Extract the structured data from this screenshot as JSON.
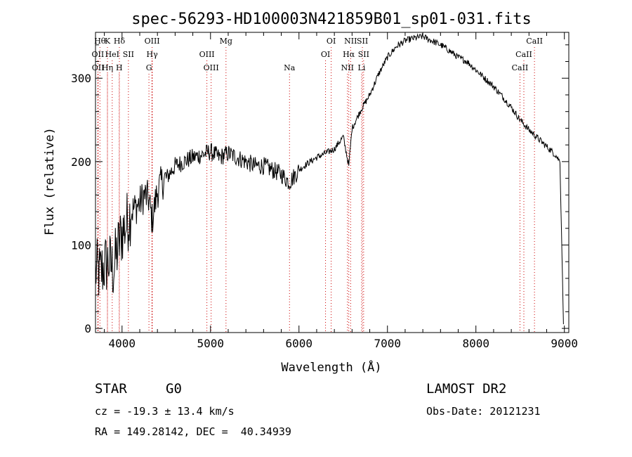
{
  "chart_data": {
    "type": "line",
    "title": "spec-56293-HD100003N421859B01_sp01-031.fits",
    "xlabel": "Wavelength (Å)",
    "ylabel": "Flux (relative)",
    "xlim": [
      3700,
      9050
    ],
    "ylim": [
      -5,
      355
    ],
    "xticks": [
      4000,
      5000,
      6000,
      7000,
      8000,
      9000
    ],
    "yticks": [
      0,
      100,
      200,
      300
    ],
    "grid": false,
    "series": [
      {
        "color": "#000000",
        "x": [
          3700,
          3750,
          3800,
          3850,
          3900,
          3950,
          4000,
          4050,
          4100,
          4150,
          4200,
          4250,
          4300,
          4340,
          4400,
          4450,
          4500,
          4600,
          4700,
          4800,
          4900,
          5000,
          5100,
          5200,
          5300,
          5400,
          5500,
          5600,
          5700,
          5800,
          5890,
          6000,
          6100,
          6200,
          6300,
          6400,
          6500,
          6563,
          6600,
          6700,
          6800,
          6900,
          7000,
          7100,
          7200,
          7300,
          7400,
          7500,
          7600,
          7700,
          7800,
          7900,
          8000,
          8100,
          8200,
          8300,
          8400,
          8500,
          8600,
          8700,
          8800,
          8900,
          8950,
          8990
        ],
        "y": [
          70,
          65,
          75,
          80,
          70,
          95,
          115,
          125,
          140,
          145,
          150,
          160,
          155,
          130,
          165,
          175,
          180,
          195,
          200,
          205,
          208,
          212,
          205,
          210,
          205,
          200,
          195,
          195,
          190,
          185,
          175,
          190,
          198,
          205,
          210,
          215,
          230,
          195,
          240,
          262,
          280,
          305,
          325,
          338,
          345,
          348,
          350,
          345,
          340,
          333,
          325,
          320,
          310,
          300,
          290,
          278,
          265,
          250,
          238,
          228,
          218,
          208,
          200,
          5
        ]
      }
    ],
    "line_markers": [
      {
        "x": 3750,
        "label": "Hθ",
        "row": 0,
        "color": "#cc0000"
      },
      {
        "x": 3835,
        "label": "K",
        "row": 0,
        "color": "#cc0000"
      },
      {
        "x": 3970,
        "label": "Hδ",
        "row": 0,
        "color": "#cc0000"
      },
      {
        "x": 4340,
        "label": "OIII",
        "row": 0,
        "color": "#cc0000"
      },
      {
        "x": 5175,
        "label": "Mg",
        "row": 0,
        "color": "#cc0000"
      },
      {
        "x": 6364,
        "label": "OI",
        "row": 0,
        "color": "#cc0000"
      },
      {
        "x": 6584,
        "label": "NII",
        "row": 0,
        "color": "#cc0000"
      },
      {
        "x": 6717,
        "label": "SII",
        "row": 0,
        "color": "#cc0000"
      },
      {
        "x": 8662,
        "label": "CaII",
        "row": 0,
        "color": "#cc0000"
      },
      {
        "x": 3727,
        "label": "OII",
        "row": 1,
        "color": "#cc0000"
      },
      {
        "x": 3889,
        "label": "HeI",
        "row": 1,
        "color": "#cc0000"
      },
      {
        "x": 4072,
        "label": "SII",
        "row": 1,
        "color": "#cc0000"
      },
      {
        "x": 4340,
        "label": "Hγ",
        "row": 1,
        "color": "#cc0000"
      },
      {
        "x": 4959,
        "label": "OIII",
        "row": 1,
        "color": "#cc0000"
      },
      {
        "x": 6300,
        "label": "OI",
        "row": 1,
        "color": "#cc0000"
      },
      {
        "x": 6563,
        "label": "Hα",
        "row": 1,
        "color": "#cc0000"
      },
      {
        "x": 6731,
        "label": "SII",
        "row": 1,
        "color": "#cc0000"
      },
      {
        "x": 8542,
        "label": "CaII",
        "row": 1,
        "color": "#cc0000"
      },
      {
        "x": 3729,
        "label": "OII",
        "row": 2,
        "color": "#cc0000"
      },
      {
        "x": 3835,
        "label": "Hη",
        "row": 2,
        "color": "#cc0000"
      },
      {
        "x": 3968,
        "label": "H",
        "row": 2,
        "color": "#cc0000"
      },
      {
        "x": 4304,
        "label": "G",
        "row": 2,
        "color": "#cc0000"
      },
      {
        "x": 5007,
        "label": "OIII",
        "row": 2,
        "color": "#cc0000"
      },
      {
        "x": 5893,
        "label": "Na",
        "row": 2,
        "color": "#cc0000"
      },
      {
        "x": 6548,
        "label": "NII",
        "row": 2,
        "color": "#cc0000"
      },
      {
        "x": 6708,
        "label": "Li",
        "row": 2,
        "color": "#cc0000"
      },
      {
        "x": 8498,
        "label": "CaII",
        "row": 2,
        "color": "#cc0000"
      }
    ]
  },
  "info": {
    "class_label": "STAR",
    "subclass": "G0",
    "survey": "LAMOST DR2",
    "cz": "cz = -19.3 ± 13.4 km/s",
    "obs_date": "Obs-Date: 20121231",
    "coords": "RA = 149.28142, DEC =  40.34939"
  }
}
